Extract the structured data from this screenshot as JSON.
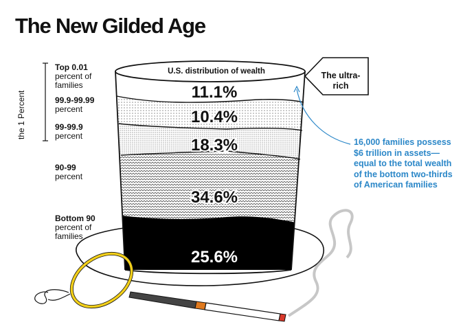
{
  "title": "The New Gilded Age",
  "side_label": "the 1 Percent",
  "hat_label": "U.S. distribution of wealth",
  "callout_label": "The ultra-rich",
  "annotation": "16,000 families possess $6 trillion in assets—equal to the total wealth of the bottom two-thirds of American families",
  "labels": [
    {
      "bold": "Top 0.01",
      "rest": "percent of families"
    },
    {
      "bold": "99.9-99.99",
      "rest": "percent"
    },
    {
      "bold": "99-99.9",
      "rest": "percent"
    },
    {
      "bold": "90-99",
      "rest": "percent"
    },
    {
      "bold": "Bottom 90",
      "rest": "percent of families"
    }
  ],
  "chart_data": {
    "type": "bar",
    "categories": [
      "Top 0.01 percent of families",
      "99.9-99.99 percent",
      "99-99.9 percent",
      "90-99 percent",
      "Bottom 90 percent of families"
    ],
    "values": [
      11.1,
      10.4,
      18.3,
      34.6,
      25.6
    ],
    "value_labels": [
      "11.1%",
      "10.4%",
      "18.3%",
      "34.6%",
      "25.6%"
    ],
    "title": "The New Gilded Age",
    "subtitle": "U.S. distribution of wealth",
    "unit": "percent of total wealth",
    "colors": [
      "#ffffff",
      "#ffffff",
      "#ffffff",
      "#ffffff",
      "#000000"
    ],
    "accent": "#2b87c8"
  }
}
